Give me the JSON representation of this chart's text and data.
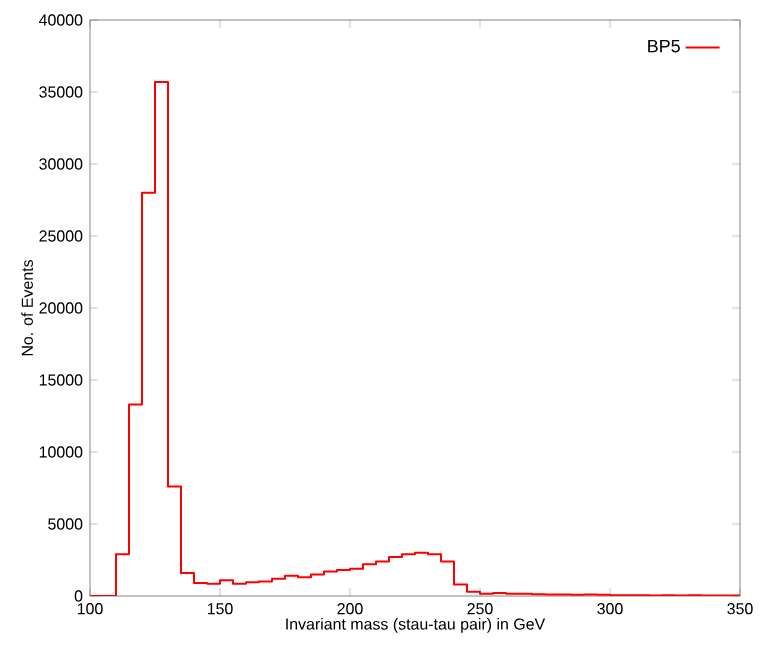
{
  "chart_data": {
    "type": "histogram",
    "xlabel": "Invariant mass (stau-tau pair) in GeV",
    "ylabel": "No. of Events",
    "bins": [
      100,
      105,
      110,
      115,
      120,
      125,
      130,
      135,
      140,
      145,
      150,
      155,
      160,
      165,
      170,
      175,
      180,
      185,
      190,
      195,
      200,
      205,
      210,
      215,
      220,
      225,
      230,
      235,
      240,
      245,
      250,
      255,
      260,
      265,
      270,
      275,
      280,
      285,
      290,
      295,
      300,
      305,
      310,
      315,
      320,
      325,
      330,
      335,
      340,
      345,
      350
    ],
    "series": [
      {
        "name": "BP5",
        "color": "#ff0000",
        "values": [
          0,
          0,
          2900,
          13300,
          28000,
          35700,
          7600,
          1600,
          900,
          850,
          1100,
          850,
          950,
          1000,
          1200,
          1400,
          1300,
          1500,
          1700,
          1800,
          1900,
          2200,
          2400,
          2700,
          2900,
          3000,
          2900,
          2400,
          800,
          300,
          150,
          200,
          150,
          150,
          120,
          100,
          100,
          80,
          100,
          80,
          60,
          50,
          50,
          40,
          60,
          40,
          50,
          40,
          30,
          30
        ]
      }
    ],
    "xlim": [
      100,
      350
    ],
    "ylim": [
      0,
      40000
    ],
    "xticks": [
      100,
      150,
      200,
      250,
      300,
      350
    ],
    "yticks": [
      0,
      5000,
      10000,
      15000,
      20000,
      25000,
      30000,
      35000,
      40000
    ],
    "legend": "top right"
  }
}
